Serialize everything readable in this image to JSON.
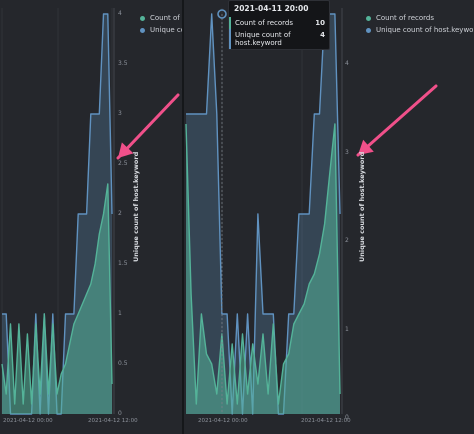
{
  "legend": {
    "left": [
      {
        "label": "Count of re",
        "color": "#54b399"
      },
      {
        "label": "Unique cour",
        "color": "#6092c0"
      }
    ],
    "right": [
      {
        "label": "Count of records",
        "color": "#54b399"
      },
      {
        "label": "Unique count of host.keyword",
        "color": "#6092c0"
      }
    ]
  },
  "tooltip": {
    "title": "2021-04-11 20:00",
    "rows": [
      {
        "label": "Count of records",
        "value": "10"
      },
      {
        "label": "Unique count of host.keyword",
        "value": "4"
      }
    ]
  },
  "axis": {
    "y_label": "Unique count of host.keyword",
    "left_ticks": [
      "4",
      "3.5",
      "3",
      "2.5",
      "2",
      "1.5",
      "1",
      "0.5",
      "0"
    ],
    "right_ticks": [
      "4",
      "3",
      "2",
      "1",
      "0"
    ],
    "left_x_ticks": [
      "2021-04-12 00:00",
      "2021-04-12 12:00"
    ],
    "right_x_ticks": [
      "2021-04-12 00:00",
      "2021-04-12 12:00"
    ]
  },
  "colors": {
    "count_series": "#54b399",
    "unique_series": "#6092c0",
    "annotation_arrow": "#f0508a",
    "background": "#25272c"
  },
  "chart_data": [
    {
      "type": "area",
      "panel": "left",
      "ylabel": "Unique count of host.keyword",
      "ylim": [
        0,
        4
      ],
      "series": [
        {
          "name": "Unique count of host.keyword",
          "values": [
            1,
            1,
            0,
            0,
            0,
            0,
            0,
            0,
            1,
            0,
            1,
            0,
            1,
            0,
            0,
            1,
            1,
            1,
            2,
            2,
            2,
            3,
            3,
            3,
            4,
            4,
            2
          ]
        },
        {
          "name": "Count of records",
          "values": [
            0.5,
            0.2,
            0.9,
            0.1,
            0.9,
            0.1,
            0.8,
            0.1,
            0.9,
            0.2,
            1.0,
            0.2,
            0.9,
            0.2,
            0.4,
            0.5,
            0.7,
            0.9,
            1.0,
            1.1,
            1.2,
            1.3,
            1.5,
            1.8,
            2.0,
            2.3,
            0.3
          ]
        }
      ]
    },
    {
      "type": "area",
      "panel": "right",
      "ylabel": "Unique count of host.keyword",
      "ylim": [
        0,
        4
      ],
      "series": [
        {
          "name": "Unique count of host.keyword",
          "values": [
            3,
            3,
            3,
            3,
            3,
            4,
            3,
            1,
            1,
            0,
            1,
            0,
            1,
            0,
            2,
            1,
            1,
            1,
            0,
            0,
            1,
            1,
            2,
            2,
            2,
            3,
            3,
            4,
            4,
            4,
            2
          ]
        },
        {
          "name": "Count of records",
          "values": [
            2.9,
            1.2,
            0.1,
            1.0,
            0.6,
            0.5,
            0.2,
            0.8,
            0.1,
            0.7,
            0.1,
            0.8,
            0.2,
            0.7,
            0.3,
            0.8,
            0.2,
            0.9,
            0.1,
            0.5,
            0.6,
            0.9,
            1.0,
            1.1,
            1.3,
            1.4,
            1.6,
            1.9,
            2.4,
            2.9,
            0.2
          ]
        }
      ]
    }
  ]
}
